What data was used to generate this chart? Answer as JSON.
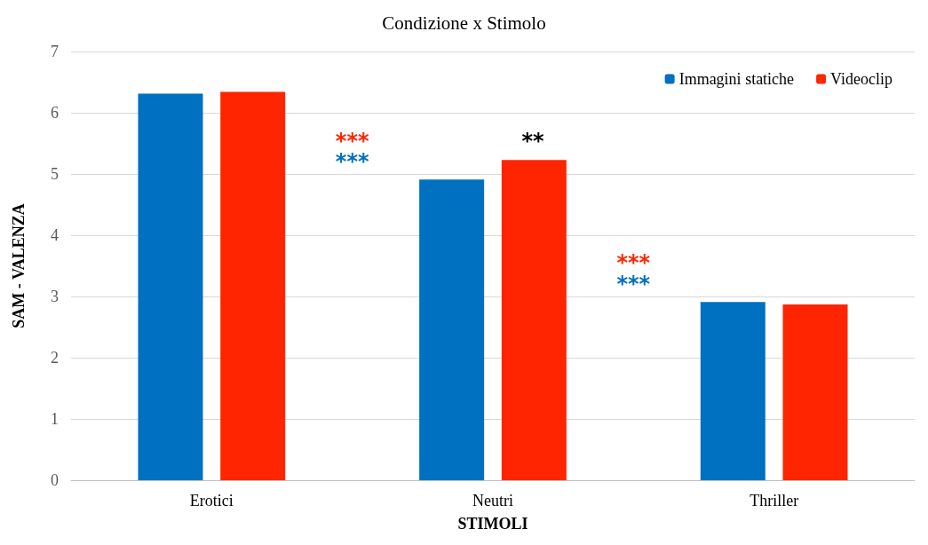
{
  "chart_data": {
    "type": "bar",
    "title": "Condizione x Stimolo",
    "xlabel": "STIMOLI",
    "ylabel": "SAM - VALENZA",
    "categories": [
      "Erotici",
      "Neutri",
      "Thriller"
    ],
    "series": [
      {
        "name": "Immagini statiche",
        "color": "#0070c0",
        "values": [
          6.31,
          4.91,
          2.91
        ]
      },
      {
        "name": "Videoclip",
        "color": "#ff2500",
        "values": [
          6.34,
          5.23,
          2.87
        ]
      }
    ],
    "ylim": [
      0,
      7
    ],
    "yticks": [
      0,
      1,
      2,
      3,
      4,
      5,
      6,
      7
    ],
    "grid": "y",
    "legend": "top right",
    "annotations": [
      "***",
      "***",
      "**",
      "***",
      "***"
    ]
  }
}
